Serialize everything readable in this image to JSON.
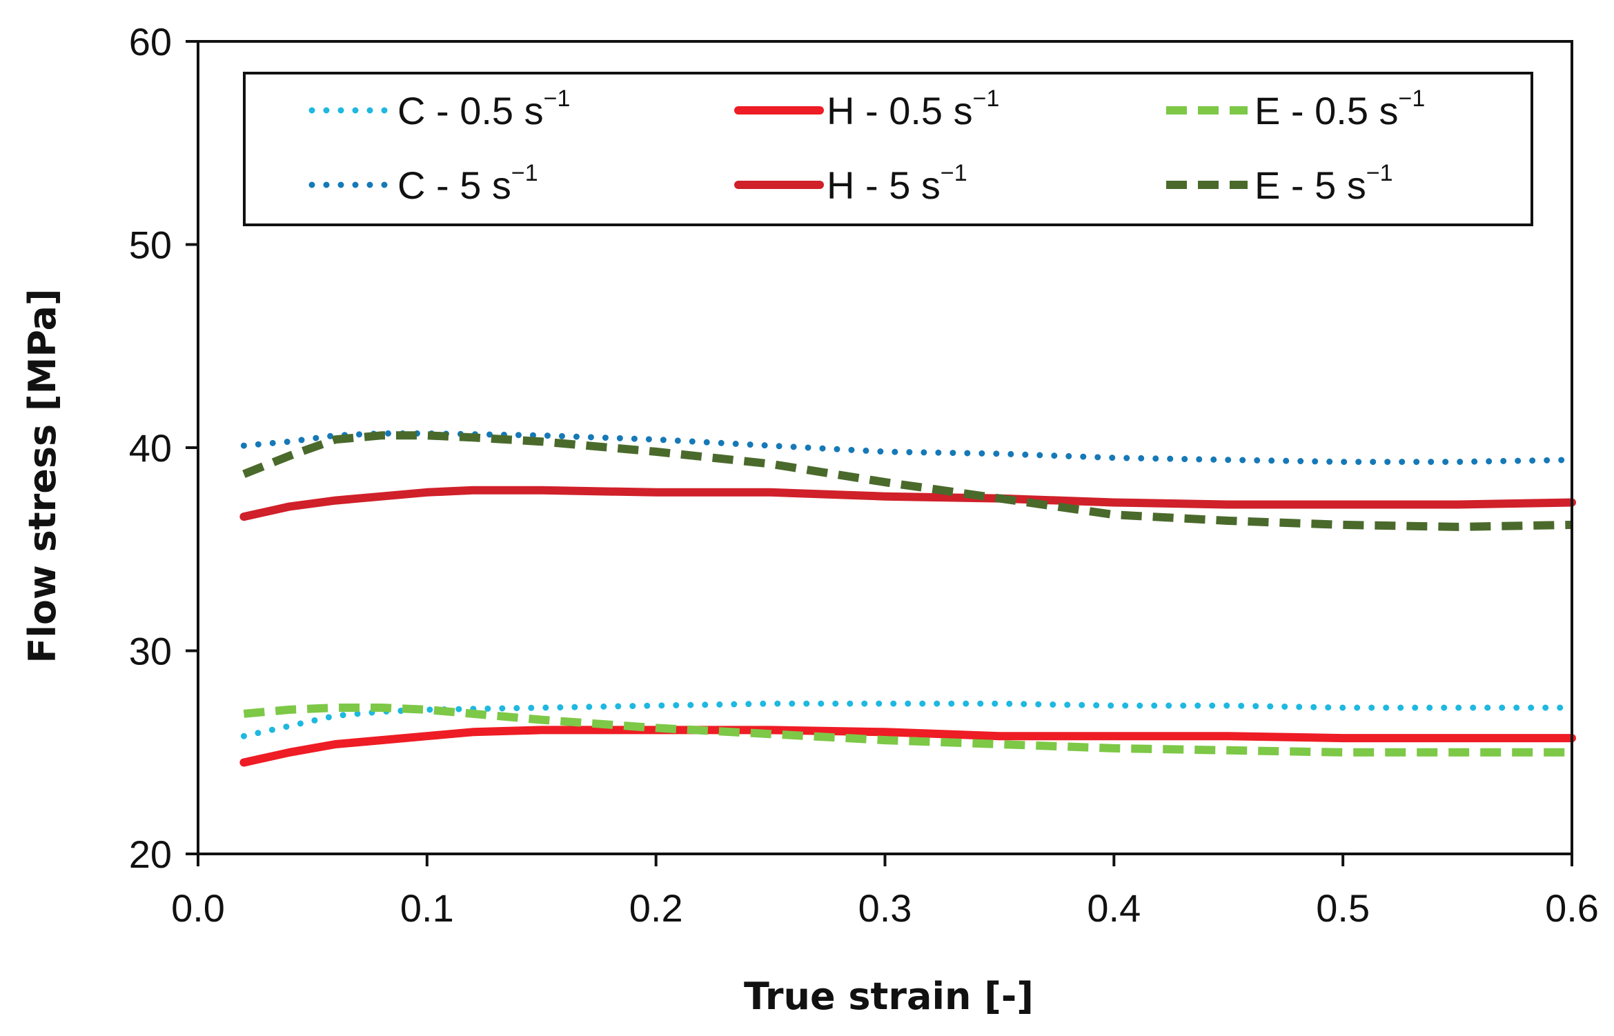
{
  "chart_data": {
    "type": "line",
    "title": "",
    "xlabel": "True strain [-]",
    "ylabel": "Flow stress [MPa]",
    "xlim": [
      0.0,
      0.6
    ],
    "ylim": [
      20,
      60
    ],
    "xticks": [
      0.0,
      0.1,
      0.2,
      0.3,
      0.4,
      0.5,
      0.6
    ],
    "xtick_labels": [
      "0.0",
      "0.1",
      "0.2",
      "0.3",
      "0.4",
      "0.5",
      "0.6"
    ],
    "yticks": [
      20,
      30,
      40,
      50,
      60
    ],
    "ytick_labels": [
      "20",
      "30",
      "40",
      "50",
      "60"
    ],
    "grid": false,
    "legend_position": "top",
    "legend_columns": 3,
    "series": [
      {
        "id": "c-05",
        "name": "C - 0.5 s",
        "unit_exponent": "−1",
        "color": "#1EB8E0",
        "style": "dotted",
        "x": [
          0.02,
          0.04,
          0.06,
          0.08,
          0.1,
          0.15,
          0.2,
          0.25,
          0.3,
          0.35,
          0.4,
          0.45,
          0.5,
          0.55,
          0.6
        ],
        "y": [
          25.8,
          26.3,
          26.8,
          27.0,
          27.1,
          27.2,
          27.3,
          27.4,
          27.4,
          27.4,
          27.3,
          27.3,
          27.2,
          27.2,
          27.2
        ]
      },
      {
        "id": "c-5",
        "name": "C - 5 s",
        "unit_exponent": "−1",
        "color": "#1679B7",
        "style": "dotted",
        "x": [
          0.02,
          0.04,
          0.06,
          0.08,
          0.1,
          0.15,
          0.2,
          0.25,
          0.3,
          0.35,
          0.4,
          0.45,
          0.5,
          0.55,
          0.6
        ],
        "y": [
          40.1,
          40.3,
          40.6,
          40.7,
          40.7,
          40.6,
          40.4,
          40.1,
          39.8,
          39.7,
          39.5,
          39.4,
          39.3,
          39.3,
          39.4
        ]
      },
      {
        "id": "h-05",
        "name": "H - 0.5 s",
        "unit_exponent": "−1",
        "color": "#EE1C24",
        "style": "solid",
        "x": [
          0.02,
          0.04,
          0.06,
          0.08,
          0.1,
          0.12,
          0.15,
          0.2,
          0.25,
          0.3,
          0.35,
          0.4,
          0.45,
          0.5,
          0.55,
          0.6
        ],
        "y": [
          24.5,
          25.0,
          25.4,
          25.6,
          25.8,
          26.0,
          26.1,
          26.1,
          26.1,
          26.0,
          25.8,
          25.8,
          25.8,
          25.7,
          25.7,
          25.7
        ]
      },
      {
        "id": "h-5",
        "name": "H - 5 s",
        "unit_exponent": "−1",
        "color": "#D0202A",
        "style": "solid",
        "x": [
          0.02,
          0.04,
          0.06,
          0.08,
          0.1,
          0.12,
          0.15,
          0.2,
          0.25,
          0.3,
          0.35,
          0.4,
          0.45,
          0.5,
          0.55,
          0.6
        ],
        "y": [
          36.6,
          37.1,
          37.4,
          37.6,
          37.8,
          37.9,
          37.9,
          37.8,
          37.8,
          37.6,
          37.5,
          37.3,
          37.2,
          37.2,
          37.2,
          37.3
        ]
      },
      {
        "id": "e-05",
        "name": "E - 0.5 s",
        "unit_exponent": "−1",
        "color": "#7DC847",
        "style": "dashed",
        "x": [
          0.02,
          0.04,
          0.06,
          0.08,
          0.1,
          0.12,
          0.15,
          0.2,
          0.25,
          0.3,
          0.35,
          0.4,
          0.45,
          0.5,
          0.55,
          0.6
        ],
        "y": [
          26.9,
          27.1,
          27.2,
          27.2,
          27.1,
          26.9,
          26.6,
          26.2,
          25.9,
          25.6,
          25.4,
          25.2,
          25.1,
          25.0,
          25.0,
          25.0
        ]
      },
      {
        "id": "e-5",
        "name": "E - 5 s",
        "unit_exponent": "−1",
        "color": "#4A6A2C",
        "style": "dashed",
        "x": [
          0.02,
          0.04,
          0.06,
          0.08,
          0.1,
          0.12,
          0.15,
          0.2,
          0.25,
          0.3,
          0.35,
          0.4,
          0.45,
          0.5,
          0.55,
          0.6
        ],
        "y": [
          38.7,
          39.6,
          40.4,
          40.6,
          40.6,
          40.5,
          40.3,
          39.8,
          39.2,
          38.3,
          37.5,
          36.7,
          36.4,
          36.2,
          36.1,
          36.2
        ]
      }
    ]
  }
}
